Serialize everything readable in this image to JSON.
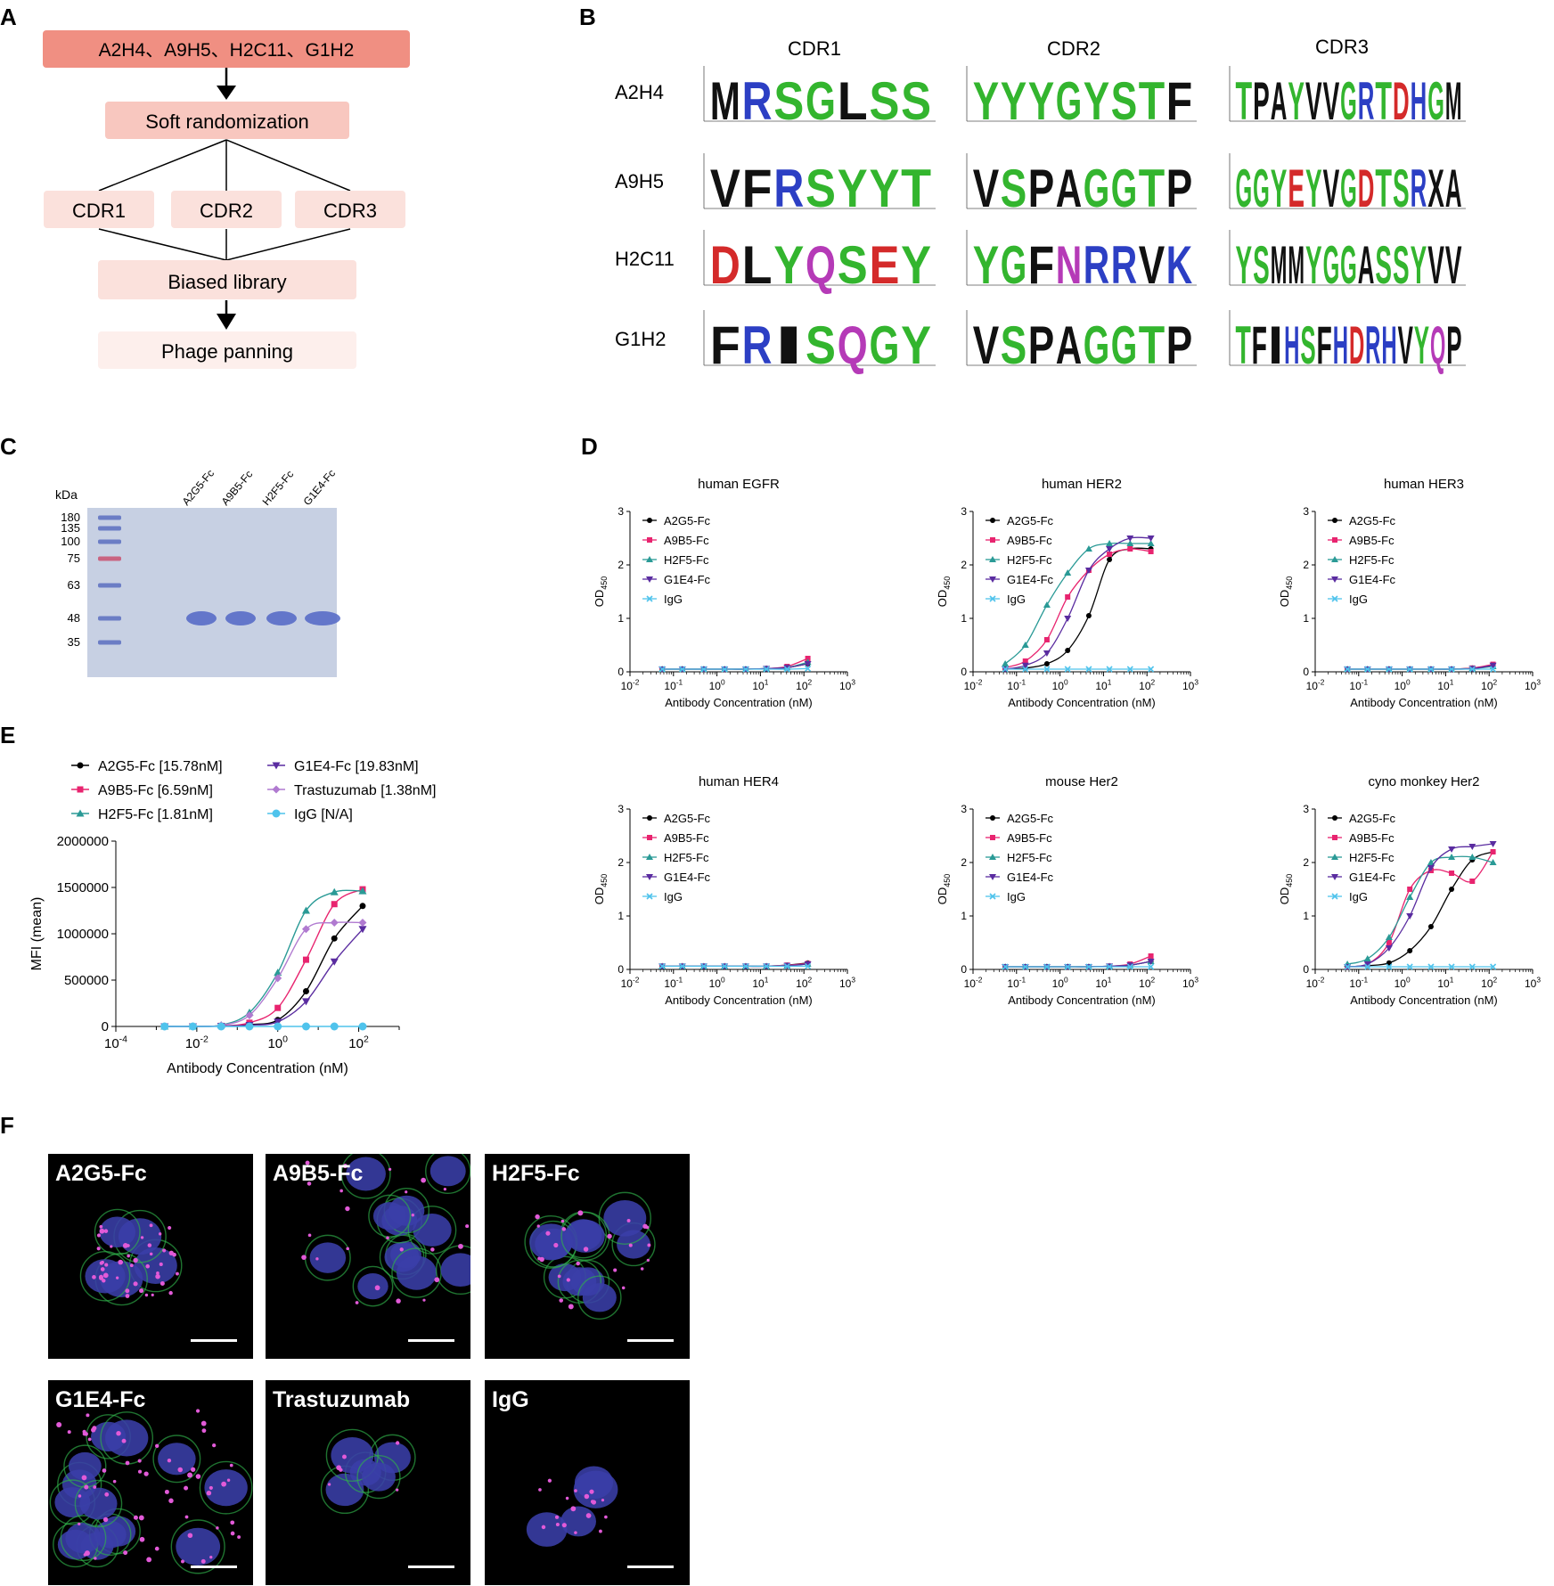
{
  "panels": {
    "A": "A",
    "B": "B",
    "C": "C",
    "D": "D",
    "E": "E",
    "F": "F"
  },
  "flow": {
    "top": "A2H4、A9H5、H2C11、G1H2",
    "soft": "Soft randomization",
    "cdrs": [
      "CDR1",
      "CDR2",
      "CDR3"
    ],
    "biased": "Biased library",
    "phage": "Phage panning"
  },
  "logos": {
    "cols": [
      "CDR1",
      "CDR2",
      "CDR3"
    ],
    "rows": [
      "A2H4",
      "A9H5",
      "H2C11",
      "G1H2"
    ],
    "seqs": [
      [
        "MRSGLSS",
        "YYYGYSTF",
        "TPAYVVGRTDHGM"
      ],
      [
        "VFRSYYT",
        "VSPAGGTP",
        "GGYEYVGDTSRXA"
      ],
      [
        "DLYQSEY",
        "YGFNRRVK",
        "YSMMYGGASSYVV"
      ],
      [
        "FRISQGY",
        "VSPAGGTP",
        "TFIHSFHDRHVYQP"
      ]
    ]
  },
  "gel": {
    "unit": "kDa",
    "markers": [
      "180",
      "135",
      "100",
      "75",
      "63",
      "48",
      "35"
    ],
    "lanes": [
      "A2G5-Fc",
      "A9B5-Fc",
      "H2F5-Fc",
      "G1E4-Fc"
    ]
  },
  "colors": {
    "A2G5": "#000000",
    "A9B5": "#e8246f",
    "H2F5": "#2a9a96",
    "G1E4": "#5a2ca0",
    "Trastuzumab": "#b07ad0",
    "IgG": "#4fc3ec",
    "flow_dark": "#f08f82",
    "flow_mid": "#f8c7bf",
    "flow_light": "#fbe1dc",
    "flow_lighter": "#fdefec"
  },
  "chart_data": [
    {
      "type": "line",
      "title": "human EGFR",
      "xlabel": "Antibody Concentration (nM)",
      "ylabel": "OD450",
      "xscale": "log",
      "xlim": [
        0.01,
        1000
      ],
      "ylim": [
        0,
        3
      ],
      "xticks": [
        "10-2",
        "10-1",
        "100",
        "101",
        "102",
        "103"
      ],
      "yticks": [
        "0",
        "1",
        "2",
        "3"
      ],
      "x": [
        0.055,
        0.16,
        0.5,
        1.5,
        4.6,
        13.7,
        41,
        123
      ],
      "series": [
        {
          "name": "A2G5-Fc",
          "values": [
            0.05,
            0.05,
            0.05,
            0.05,
            0.05,
            0.06,
            0.08,
            0.15
          ]
        },
        {
          "name": "A9B5-Fc",
          "values": [
            0.05,
            0.05,
            0.05,
            0.05,
            0.05,
            0.06,
            0.1,
            0.25
          ]
        },
        {
          "name": "H2F5-Fc",
          "values": [
            0.05,
            0.05,
            0.05,
            0.05,
            0.05,
            0.06,
            0.08,
            0.18
          ]
        },
        {
          "name": "G1E4-Fc",
          "values": [
            0.05,
            0.05,
            0.05,
            0.05,
            0.05,
            0.06,
            0.08,
            0.15
          ]
        },
        {
          "name": "IgG",
          "values": [
            0.05,
            0.05,
            0.05,
            0.05,
            0.05,
            0.05,
            0.05,
            0.06
          ]
        }
      ]
    },
    {
      "type": "line",
      "title": "human HER2",
      "xlabel": "Antibody Concentration (nM)",
      "ylabel": "OD450",
      "xscale": "log",
      "xlim": [
        0.01,
        1000
      ],
      "ylim": [
        0,
        3
      ],
      "xticks": [
        "10-2",
        "10-1",
        "100",
        "101",
        "102",
        "103"
      ],
      "yticks": [
        "0",
        "1",
        "2",
        "3"
      ],
      "x": [
        0.055,
        0.16,
        0.5,
        1.5,
        4.6,
        13.7,
        41,
        123
      ],
      "series": [
        {
          "name": "A2G5-Fc",
          "values": [
            0.05,
            0.07,
            0.15,
            0.4,
            1.05,
            2.1,
            2.3,
            2.3
          ]
        },
        {
          "name": "A9B5-Fc",
          "values": [
            0.08,
            0.2,
            0.6,
            1.4,
            1.9,
            2.2,
            2.3,
            2.25
          ]
        },
        {
          "name": "H2F5-Fc",
          "values": [
            0.15,
            0.5,
            1.25,
            1.85,
            2.3,
            2.4,
            2.4,
            2.4
          ]
        },
        {
          "name": "G1E4-Fc",
          "values": [
            0.05,
            0.12,
            0.35,
            1.0,
            1.9,
            2.3,
            2.5,
            2.5
          ]
        },
        {
          "name": "IgG",
          "values": [
            0.05,
            0.05,
            0.05,
            0.05,
            0.05,
            0.05,
            0.05,
            0.05
          ]
        }
      ]
    },
    {
      "type": "line",
      "title": "human HER3",
      "xlabel": "Antibody Concentration (nM)",
      "ylabel": "OD450",
      "xscale": "log",
      "xlim": [
        0.01,
        1000
      ],
      "ylim": [
        0,
        3
      ],
      "xticks": [
        "10-2",
        "10-1",
        "100",
        "101",
        "102",
        "103"
      ],
      "yticks": [
        "0",
        "1",
        "2",
        "3"
      ],
      "x": [
        0.055,
        0.16,
        0.5,
        1.5,
        4.6,
        13.7,
        41,
        123
      ],
      "series": [
        {
          "name": "A2G5-Fc",
          "values": [
            0.05,
            0.05,
            0.05,
            0.05,
            0.05,
            0.05,
            0.07,
            0.12
          ]
        },
        {
          "name": "A9B5-Fc",
          "values": [
            0.05,
            0.05,
            0.05,
            0.05,
            0.05,
            0.05,
            0.07,
            0.14
          ]
        },
        {
          "name": "H2F5-Fc",
          "values": [
            0.05,
            0.05,
            0.05,
            0.05,
            0.05,
            0.05,
            0.06,
            0.1
          ]
        },
        {
          "name": "G1E4-Fc",
          "values": [
            0.05,
            0.05,
            0.05,
            0.05,
            0.05,
            0.05,
            0.06,
            0.12
          ]
        },
        {
          "name": "IgG",
          "values": [
            0.05,
            0.05,
            0.05,
            0.05,
            0.05,
            0.05,
            0.05,
            0.05
          ]
        }
      ]
    },
    {
      "type": "line",
      "title": "human HER4",
      "xlabel": "Antibody Concentration (nM)",
      "ylabel": "OD450",
      "xscale": "log",
      "xlim": [
        0.01,
        1000
      ],
      "ylim": [
        0,
        3
      ],
      "xticks": [
        "10-2",
        "10-1",
        "100",
        "101",
        "102",
        "103"
      ],
      "yticks": [
        "0",
        "1",
        "2",
        "3"
      ],
      "x": [
        0.055,
        0.16,
        0.5,
        1.5,
        4.6,
        13.7,
        41,
        123
      ],
      "series": [
        {
          "name": "A2G5-Fc",
          "values": [
            0.06,
            0.06,
            0.06,
            0.06,
            0.06,
            0.06,
            0.08,
            0.12
          ]
        },
        {
          "name": "A9B5-Fc",
          "values": [
            0.06,
            0.06,
            0.06,
            0.06,
            0.06,
            0.06,
            0.08,
            0.11
          ]
        },
        {
          "name": "H2F5-Fc",
          "values": [
            0.06,
            0.06,
            0.06,
            0.06,
            0.06,
            0.06,
            0.07,
            0.1
          ]
        },
        {
          "name": "G1E4-Fc",
          "values": [
            0.06,
            0.06,
            0.06,
            0.06,
            0.06,
            0.06,
            0.07,
            0.1
          ]
        },
        {
          "name": "IgG",
          "values": [
            0.06,
            0.06,
            0.06,
            0.06,
            0.06,
            0.06,
            0.06,
            0.06
          ]
        }
      ]
    },
    {
      "type": "line",
      "title": "mouse Her2",
      "xlabel": "Antibody Concentration (nM)",
      "ylabel": "OD450",
      "xscale": "log",
      "xlim": [
        0.01,
        1000
      ],
      "ylim": [
        0,
        3
      ],
      "xticks": [
        "10-2",
        "10-1",
        "100",
        "101",
        "102",
        "103"
      ],
      "yticks": [
        "0",
        "1",
        "2",
        "3"
      ],
      "x": [
        0.055,
        0.16,
        0.5,
        1.5,
        4.6,
        13.7,
        41,
        123
      ],
      "series": [
        {
          "name": "A2G5-Fc",
          "values": [
            0.05,
            0.05,
            0.05,
            0.05,
            0.05,
            0.06,
            0.08,
            0.15
          ]
        },
        {
          "name": "A9B5-Fc",
          "values": [
            0.05,
            0.05,
            0.05,
            0.05,
            0.05,
            0.06,
            0.1,
            0.25
          ]
        },
        {
          "name": "H2F5-Fc",
          "values": [
            0.05,
            0.05,
            0.05,
            0.05,
            0.05,
            0.06,
            0.08,
            0.15
          ]
        },
        {
          "name": "G1E4-Fc",
          "values": [
            0.05,
            0.05,
            0.05,
            0.05,
            0.05,
            0.06,
            0.08,
            0.15
          ]
        },
        {
          "name": "IgG",
          "values": [
            0.05,
            0.05,
            0.05,
            0.05,
            0.05,
            0.05,
            0.05,
            0.05
          ]
        }
      ]
    },
    {
      "type": "line",
      "title": "cyno monkey Her2",
      "xlabel": "Antibody Concentration (nM)",
      "ylabel": "OD450",
      "xscale": "log",
      "xlim": [
        0.01,
        1000
      ],
      "ylim": [
        0,
        3
      ],
      "xticks": [
        "10-2",
        "10-1",
        "100",
        "101",
        "102",
        "103"
      ],
      "yticks": [
        "0",
        "1",
        "2",
        "3"
      ],
      "x": [
        0.055,
        0.16,
        0.5,
        1.5,
        4.6,
        13.7,
        41,
        123
      ],
      "series": [
        {
          "name": "A2G5-Fc",
          "values": [
            0.05,
            0.07,
            0.12,
            0.35,
            0.8,
            1.5,
            2.05,
            2.2
          ]
        },
        {
          "name": "A9B5-Fc",
          "values": [
            0.05,
            0.1,
            0.5,
            1.5,
            1.85,
            1.8,
            1.65,
            2.2
          ]
        },
        {
          "name": "H2F5-Fc",
          "values": [
            0.1,
            0.2,
            0.6,
            1.35,
            2.0,
            2.1,
            2.1,
            2.0
          ]
        },
        {
          "name": "G1E4-Fc",
          "values": [
            0.05,
            0.1,
            0.4,
            1.0,
            1.9,
            2.25,
            2.3,
            2.35
          ]
        },
        {
          "name": "IgG",
          "values": [
            0.05,
            0.05,
            0.05,
            0.05,
            0.05,
            0.05,
            0.05,
            0.05
          ]
        }
      ]
    },
    {
      "type": "line",
      "title": "",
      "xlabel": "Antibody Concentration  (nM)",
      "ylabel": "MFI  (mean)",
      "xscale": "log",
      "xlim": [
        0.0001,
        1000
      ],
      "ylim": [
        0,
        2000000
      ],
      "xticks": [
        "10-4",
        "10-2",
        "100",
        "102"
      ],
      "yticks": [
        "0",
        "500000",
        "1000000",
        "1500000",
        "2000000"
      ],
      "x": [
        0.0016,
        0.008,
        0.04,
        0.2,
        1,
        5,
        25,
        125
      ],
      "series": [
        {
          "name": "A2G5-Fc [15.78nM]",
          "values": [
            0,
            0,
            5000,
            20000,
            70000,
            380000,
            950000,
            1300000
          ]
        },
        {
          "name": "A9B5-Fc [6.59nM]",
          "values": [
            0,
            0,
            6000,
            40000,
            200000,
            720000,
            1320000,
            1480000
          ]
        },
        {
          "name": "H2F5-Fc [1.81nM]",
          "values": [
            0,
            0,
            15000,
            150000,
            580000,
            1250000,
            1450000,
            1460000
          ]
        },
        {
          "name": "G1E4-Fc [19.83nM]",
          "values": [
            0,
            0,
            4000,
            15000,
            50000,
            270000,
            700000,
            1050000
          ]
        },
        {
          "name": "Trastuzumab [1.38nM]",
          "values": [
            0,
            0,
            12000,
            120000,
            520000,
            1050000,
            1120000,
            1120000
          ]
        },
        {
          "name": "IgG [N/A]",
          "values": [
            0,
            0,
            0,
            0,
            0,
            0,
            0,
            0
          ]
        }
      ]
    }
  ],
  "micro": [
    "A2G5-Fc",
    "A9B5-Fc",
    "H2F5-Fc",
    "G1E4-Fc",
    "Trastuzumab",
    "IgG"
  ]
}
